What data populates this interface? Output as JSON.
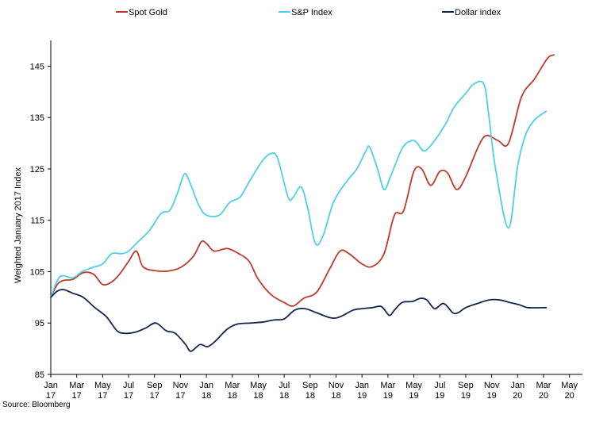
{
  "chart_data": {
    "type": "line",
    "ylabel": "Weighted January 2017 Index",
    "ylim": [
      85,
      150
    ],
    "yticks": [
      85,
      95,
      105,
      115,
      125,
      135,
      145
    ],
    "grid": false,
    "legend_position": "top",
    "x_tick_labels": [
      {
        "line1": "Jan",
        "line2": "17"
      },
      {
        "line1": "Mar",
        "line2": "17"
      },
      {
        "line1": "May",
        "line2": "17"
      },
      {
        "line1": "Jul",
        "line2": "17"
      },
      {
        "line1": "Sep",
        "line2": "17"
      },
      {
        "line1": "Nov",
        "line2": "17"
      },
      {
        "line1": "Jan",
        "line2": "18"
      },
      {
        "line1": "Mar",
        "line2": "18"
      },
      {
        "line1": "May",
        "line2": "18"
      },
      {
        "line1": "Jul",
        "line2": "18"
      },
      {
        "line1": "Sep",
        "line2": "18"
      },
      {
        "line1": "Nov",
        "line2": "18"
      },
      {
        "line1": "Jan",
        "line2": "19"
      },
      {
        "line1": "Mar",
        "line2": "19"
      },
      {
        "line1": "May",
        "line2": "19"
      },
      {
        "line1": "Jul",
        "line2": "19"
      },
      {
        "line1": "Sep",
        "line2": "19"
      },
      {
        "line1": "Nov",
        "line2": "19"
      },
      {
        "line1": "Jan",
        "line2": "20"
      },
      {
        "line1": "Mar",
        "line2": "20"
      },
      {
        "line1": "May",
        "line2": "20"
      }
    ],
    "x_months": [
      0,
      2,
      4,
      6,
      8,
      10,
      12,
      14,
      16,
      18,
      20,
      22,
      24,
      26,
      28,
      30,
      32,
      34,
      36,
      38,
      40
    ],
    "x_max": 41,
    "series": [
      {
        "name": "Spot Gold",
        "color": "#c0392b",
        "points": [
          [
            0,
            100
          ],
          [
            0.5,
            102.5
          ],
          [
            1,
            103.3
          ],
          [
            1.7,
            103.5
          ],
          [
            2.5,
            104.8
          ],
          [
            3.3,
            104.5
          ],
          [
            4,
            102.5
          ],
          [
            4.7,
            103
          ],
          [
            5.3,
            104.5
          ],
          [
            6,
            107
          ],
          [
            6.6,
            109
          ],
          [
            7.1,
            106
          ],
          [
            8,
            105.2
          ],
          [
            9,
            105.1
          ],
          [
            10,
            105.8
          ],
          [
            11,
            108
          ],
          [
            11.6,
            110.8
          ],
          [
            12,
            110.5
          ],
          [
            12.6,
            109
          ],
          [
            13.6,
            109.5
          ],
          [
            14.5,
            108.5
          ],
          [
            15.3,
            107
          ],
          [
            16,
            103.5
          ],
          [
            17,
            100.5
          ],
          [
            18,
            99
          ],
          [
            18.7,
            98.3
          ],
          [
            19.5,
            99.8
          ],
          [
            20.5,
            101
          ],
          [
            21.5,
            105.5
          ],
          [
            22.3,
            109
          ],
          [
            23,
            108.5
          ],
          [
            24,
            106.5
          ],
          [
            24.8,
            106
          ],
          [
            25.7,
            108.5
          ],
          [
            26.5,
            116
          ],
          [
            27.2,
            116.8
          ],
          [
            28,
            124.5
          ],
          [
            28.6,
            125
          ],
          [
            29.3,
            121.8
          ],
          [
            30,
            124.5
          ],
          [
            30.6,
            124.2
          ],
          [
            31.3,
            121
          ],
          [
            32,
            123.5
          ],
          [
            33,
            129.5
          ],
          [
            33.6,
            131.5
          ],
          [
            34.5,
            130.5
          ],
          [
            35.3,
            130
          ],
          [
            36.3,
            139
          ],
          [
            37.3,
            142.5
          ],
          [
            38.3,
            146.5
          ],
          [
            38.8,
            147.2
          ]
        ]
      },
      {
        "name": "S&P Index",
        "color": "#4dd0e8",
        "points": [
          [
            0,
            100
          ],
          [
            0.7,
            104
          ],
          [
            1.7,
            103.8
          ],
          [
            2.4,
            105
          ],
          [
            3.2,
            105.8
          ],
          [
            4,
            106.5
          ],
          [
            4.7,
            108.5
          ],
          [
            5.5,
            108.5
          ],
          [
            6,
            109
          ],
          [
            6.6,
            110.5
          ],
          [
            7.6,
            113
          ],
          [
            8.5,
            116.3
          ],
          [
            9.2,
            117
          ],
          [
            9.8,
            120.5
          ],
          [
            10.3,
            124
          ],
          [
            10.7,
            122.5
          ],
          [
            11.4,
            118
          ],
          [
            12,
            116
          ],
          [
            13,
            116
          ],
          [
            13.8,
            118.5
          ],
          [
            14.6,
            119.5
          ],
          [
            15.3,
            122.5
          ],
          [
            16.3,
            126.5
          ],
          [
            17,
            128
          ],
          [
            17.5,
            127
          ],
          [
            18.3,
            119.5
          ],
          [
            18.7,
            119.5
          ],
          [
            19.3,
            121.5
          ],
          [
            19.8,
            117.5
          ],
          [
            20.4,
            110.5
          ],
          [
            21,
            112
          ],
          [
            21.8,
            118.5
          ],
          [
            22.8,
            122.5
          ],
          [
            23.6,
            125
          ],
          [
            24.3,
            128.5
          ],
          [
            24.6,
            129.2
          ],
          [
            25.2,
            125
          ],
          [
            25.7,
            121
          ],
          [
            26.2,
            123.5
          ],
          [
            27.1,
            129
          ],
          [
            27.8,
            130.5
          ],
          [
            28.2,
            130.2
          ],
          [
            28.8,
            128.5
          ],
          [
            29.6,
            130.5
          ],
          [
            30.5,
            134
          ],
          [
            31.1,
            137
          ],
          [
            32.1,
            140
          ],
          [
            32.6,
            141.5
          ],
          [
            33.4,
            141.5
          ],
          [
            33.8,
            135
          ],
          [
            34.3,
            125
          ],
          [
            35.3,
            113.5
          ],
          [
            36,
            125.5
          ],
          [
            36.6,
            131.5
          ],
          [
            37.3,
            134.5
          ],
          [
            38.2,
            136.2
          ]
        ]
      },
      {
        "name": "Dollar index",
        "color": "#13254d",
        "points": [
          [
            0,
            100
          ],
          [
            0.5,
            101.2
          ],
          [
            1,
            101.5
          ],
          [
            1.7,
            100.8
          ],
          [
            2.5,
            100
          ],
          [
            3.4,
            98
          ],
          [
            4.3,
            96.2
          ],
          [
            5.1,
            93.5
          ],
          [
            5.7,
            93
          ],
          [
            6.5,
            93.2
          ],
          [
            7.3,
            94
          ],
          [
            8.1,
            95
          ],
          [
            8.9,
            93.5
          ],
          [
            9.6,
            93
          ],
          [
            10.4,
            90.8
          ],
          [
            10.8,
            89.5
          ],
          [
            11.5,
            90.8
          ],
          [
            12.1,
            90.4
          ],
          [
            12.7,
            91.5
          ],
          [
            13.6,
            93.8
          ],
          [
            14.4,
            94.8
          ],
          [
            15.4,
            95
          ],
          [
            16.4,
            95.2
          ],
          [
            17.2,
            95.6
          ],
          [
            18,
            95.8
          ],
          [
            18.8,
            97.5
          ],
          [
            19.6,
            97.8
          ],
          [
            20.5,
            97
          ],
          [
            21.6,
            96
          ],
          [
            22.3,
            96.2
          ],
          [
            23.3,
            97.5
          ],
          [
            24,
            97.8
          ],
          [
            24.8,
            98
          ],
          [
            25.5,
            98.2
          ],
          [
            26.1,
            96.5
          ],
          [
            26.5,
            97.5
          ],
          [
            27.1,
            99
          ],
          [
            27.9,
            99.2
          ],
          [
            28.5,
            99.8
          ],
          [
            29,
            99.5
          ],
          [
            29.6,
            97.8
          ],
          [
            30.3,
            98.8
          ],
          [
            31,
            97
          ],
          [
            31.4,
            97
          ],
          [
            32,
            98
          ],
          [
            32.9,
            98.8
          ],
          [
            33.8,
            99.5
          ],
          [
            34.6,
            99.5
          ],
          [
            35.4,
            99
          ],
          [
            36.2,
            98.5
          ],
          [
            36.8,
            98
          ],
          [
            38.2,
            98
          ]
        ]
      }
    ]
  },
  "source_text": "Source: Bloomberg"
}
